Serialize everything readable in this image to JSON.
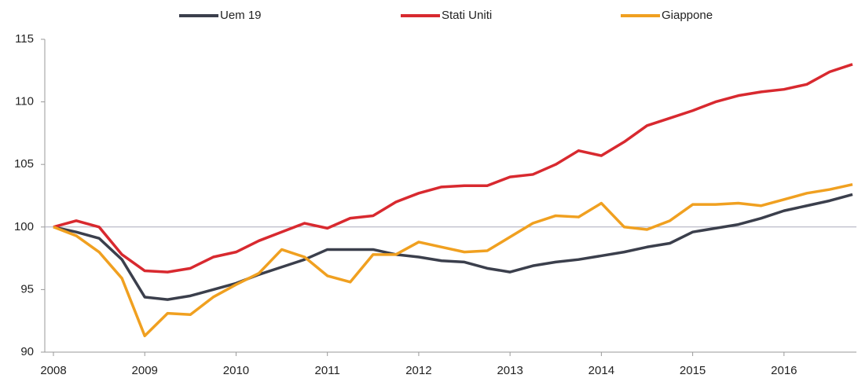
{
  "chart_data": {
    "type": "line",
    "categories": [
      "2008",
      null,
      null,
      null,
      "2009",
      null,
      null,
      null,
      "2010",
      null,
      null,
      null,
      "2011",
      null,
      null,
      null,
      "2012",
      null,
      null,
      null,
      "2013",
      null,
      null,
      null,
      "2014",
      null,
      null,
      null,
      "2015",
      null,
      null,
      null,
      "2016",
      null,
      null,
      null
    ],
    "series": [
      {
        "name": "Uem 19",
        "color": "#3b3f4c",
        "values": [
          100,
          99.6,
          99.1,
          97.4,
          94.4,
          94.2,
          94.5,
          95.0,
          95.5,
          96.2,
          96.8,
          97.4,
          98.2,
          98.2,
          98.2,
          97.8,
          97.6,
          97.3,
          97.2,
          96.7,
          96.4,
          96.9,
          97.2,
          97.4,
          97.7,
          98.0,
          98.4,
          98.7,
          99.6,
          99.9,
          100.2,
          100.7,
          101.3,
          101.7,
          102.1,
          102.6
        ]
      },
      {
        "name": "Stati Uniti",
        "color": "#d8292f",
        "values": [
          100,
          100.5,
          100.0,
          97.8,
          96.5,
          96.4,
          96.7,
          97.6,
          98.0,
          98.9,
          99.6,
          100.3,
          99.9,
          100.7,
          100.9,
          102.0,
          102.7,
          103.2,
          103.3,
          103.3,
          104.0,
          104.2,
          105.0,
          106.1,
          105.7,
          106.8,
          108.1,
          108.7,
          109.3,
          110.0,
          110.5,
          110.8,
          111.0,
          111.4,
          112.4,
          113.0
        ]
      },
      {
        "name": "Giappone",
        "color": "#f0a020",
        "values": [
          100,
          99.3,
          98.0,
          95.9,
          91.3,
          93.1,
          93.0,
          94.4,
          95.4,
          96.3,
          98.2,
          97.6,
          96.1,
          95.6,
          97.8,
          97.8,
          98.8,
          98.4,
          98.0,
          98.1,
          99.2,
          100.3,
          100.9,
          100.8,
          101.9,
          100.0,
          99.8,
          100.5,
          101.8,
          101.8,
          101.9,
          101.7,
          102.2,
          102.7,
          103.0,
          103.4
        ]
      }
    ],
    "ylim": [
      90,
      115
    ],
    "yticks": [
      90,
      95,
      100,
      105,
      110,
      115
    ],
    "reference_line": 100,
    "legend": "top"
  }
}
